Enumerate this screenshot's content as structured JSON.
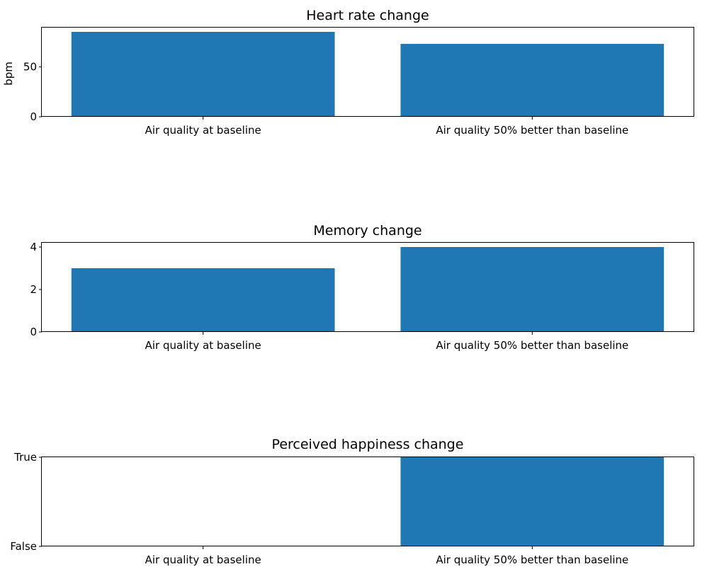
{
  "chart_data": [
    {
      "type": "bar",
      "title": "Heart rate change",
      "xlabel": "",
      "ylabel": "bpm",
      "categories": [
        "Air quality at baseline",
        "Air quality 50% better than baseline"
      ],
      "values": [
        85,
        73
      ],
      "ylim": [
        0,
        89.25
      ],
      "yticks": [
        0,
        50
      ],
      "ytick_labels": [
        "0",
        "50"
      ],
      "bar_color": "#1f77b4",
      "grid": false
    },
    {
      "type": "bar",
      "title": "Memory change",
      "xlabel": "",
      "ylabel": "",
      "categories": [
        "Air quality at baseline",
        "Air quality 50% better than baseline"
      ],
      "values": [
        3,
        4
      ],
      "ylim": [
        0,
        4.2
      ],
      "yticks": [
        0,
        2,
        4
      ],
      "ytick_labels": [
        "0",
        "2",
        "4"
      ],
      "bar_color": "#1f77b4",
      "grid": false
    },
    {
      "type": "bar",
      "title": "Perceived happiness change",
      "xlabel": "",
      "ylabel": "",
      "categories": [
        "Air quality at baseline",
        "Air quality 50% better than baseline"
      ],
      "values": [
        0,
        1
      ],
      "ylim": [
        0,
        1
      ],
      "yticks": [
        0,
        1
      ],
      "ytick_labels": [
        "False",
        "True"
      ],
      "bar_color": "#1f77b4",
      "grid": false
    }
  ]
}
